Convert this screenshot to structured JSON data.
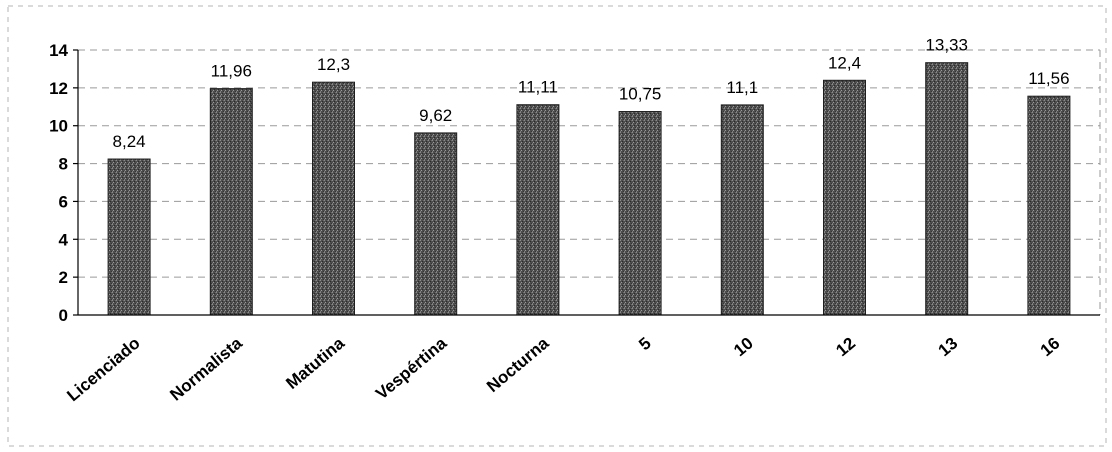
{
  "chart_data": {
    "type": "bar",
    "categories": [
      "Licenciado",
      "Normalista",
      "Matutina",
      "Vespértina",
      "Nocturna",
      "5",
      "10",
      "12",
      "13",
      "16"
    ],
    "values": [
      8.24,
      11.96,
      12.3,
      9.62,
      11.11,
      10.75,
      11.1,
      12.4,
      13.33,
      11.56
    ],
    "value_labels": [
      "8,24",
      "11,96",
      "12,3",
      "9,62",
      "11,11",
      "10,75",
      "11,1",
      "12,4",
      "13,33",
      "11,56"
    ],
    "y_ticks": [
      "0",
      "2",
      "4",
      "6",
      "8",
      "10",
      "12",
      "14"
    ],
    "ylim": [
      0,
      14
    ],
    "grid": true,
    "bar_color": "#4a4a4a"
  }
}
